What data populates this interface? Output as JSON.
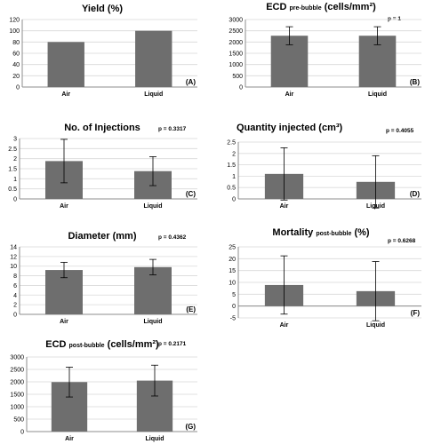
{
  "chart_data": [
    {
      "type": "bar",
      "title": "Yield (%)",
      "title_main": "Yield (%)",
      "title_sub": "",
      "title_end": "",
      "p_value": "",
      "panel_label": "(A)",
      "categories": [
        "Air",
        "Liquid"
      ],
      "values": [
        80,
        100
      ],
      "error": [
        0,
        0
      ],
      "ylim": [
        0,
        120
      ],
      "yticks": [
        "0",
        "20",
        "40",
        "60",
        "80",
        "100",
        "120"
      ],
      "ytick_values": [
        0,
        20,
        40,
        60,
        80,
        100,
        120
      ],
      "grid": true
    },
    {
      "type": "bar",
      "title": "ECD pre-bubble (cells/mm2)",
      "title_main": "ECD ",
      "title_sub": "pre-bubble",
      "title_end": " (cells/mm²)",
      "p_value": "p = 1",
      "panel_label": "(B)",
      "categories": [
        "Air",
        "Liquid"
      ],
      "values": [
        2280,
        2280
      ],
      "error": [
        400,
        400
      ],
      "ylim": [
        0,
        3000
      ],
      "yticks": [
        "0",
        "500",
        "1000",
        "1500",
        "2000",
        "2500",
        "3000"
      ],
      "ytick_values": [
        0,
        500,
        1000,
        1500,
        2000,
        2500,
        3000
      ],
      "grid": true
    },
    {
      "type": "bar",
      "title": "No. of Injections",
      "title_main": "No. of Injections",
      "title_sub": "",
      "title_end": "",
      "p_value": "p = 0.3317",
      "panel_label": "(C)",
      "categories": [
        "Air",
        "Liquid"
      ],
      "values": [
        1.88,
        1.38
      ],
      "error": [
        1.08,
        0.72
      ],
      "ylim": [
        0,
        3
      ],
      "yticks": [
        "0",
        "0.5",
        "1",
        "1.5",
        "2",
        "2.5",
        "3"
      ],
      "ytick_values": [
        0,
        0.5,
        1,
        1.5,
        2,
        2.5,
        3
      ],
      "grid": true
    },
    {
      "type": "bar",
      "title": "Quantity injected (cm3)",
      "title_main": "Quantity injected (cm³)",
      "title_sub": "",
      "title_end": "",
      "p_value": "p = 0.4055",
      "panel_label": "(D)",
      "categories": [
        "Air",
        "Liquid"
      ],
      "values": [
        1.1,
        0.75
      ],
      "error": [
        1.15,
        1.15
      ],
      "ylim": [
        0,
        2.5
      ],
      "yticks": [
        "0",
        "0.5",
        "1",
        "1.5",
        "2",
        "2.5"
      ],
      "ytick_values": [
        0,
        0.5,
        1,
        1.5,
        2,
        2.5
      ],
      "grid": true
    },
    {
      "type": "bar",
      "title": "Diameter (mm)",
      "title_main": "Diameter (mm)",
      "title_sub": "",
      "title_end": "",
      "p_value": "p = 0.4362",
      "panel_label": "(E)",
      "categories": [
        "Air",
        "Liquid"
      ],
      "values": [
        9.2,
        9.8
      ],
      "error": [
        1.6,
        1.6
      ],
      "ylim": [
        0,
        14
      ],
      "yticks": [
        "0",
        "2",
        "4",
        "6",
        "8",
        "10",
        "12",
        "14"
      ],
      "ytick_values": [
        0,
        2,
        4,
        6,
        8,
        10,
        12,
        14
      ],
      "grid": true
    },
    {
      "type": "bar",
      "title": "Mortality post-bubble (%)",
      "title_main": "Mortality ",
      "title_sub": "post-bubble",
      "title_end": " (%)",
      "p_value": "p = 0.6268",
      "panel_label": "(F)",
      "categories": [
        "Air",
        "Liquid"
      ],
      "values": [
        8.9,
        6.3
      ],
      "error": [
        12.3,
        12.5
      ],
      "ylim": [
        -5,
        25
      ],
      "yticks": [
        "-5",
        "0",
        "5",
        "10",
        "15",
        "20",
        "25"
      ],
      "ytick_values": [
        -5,
        0,
        5,
        10,
        15,
        20,
        25
      ],
      "grid": true
    },
    {
      "type": "bar",
      "title": "ECD post-bubble (cells/mm2)",
      "title_main": "ECD ",
      "title_sub": "post-bubble",
      "title_end": " (cells/mm²)",
      "p_value": "p = 0.2171",
      "panel_label": "(G)",
      "categories": [
        "Air",
        "Liquid"
      ],
      "values": [
        1990,
        2050
      ],
      "error": [
        600,
        620
      ],
      "ylim": [
        0,
        3000
      ],
      "yticks": [
        "0",
        "500",
        "1000",
        "1500",
        "2000",
        "2500",
        "3000"
      ],
      "ytick_values": [
        0,
        500,
        1000,
        1500,
        2000,
        2500,
        3000
      ],
      "grid": true
    }
  ],
  "colors": {
    "bar": "#6e6e6e",
    "grid": "#d9d9d9",
    "axis": "#8c8c8c"
  }
}
